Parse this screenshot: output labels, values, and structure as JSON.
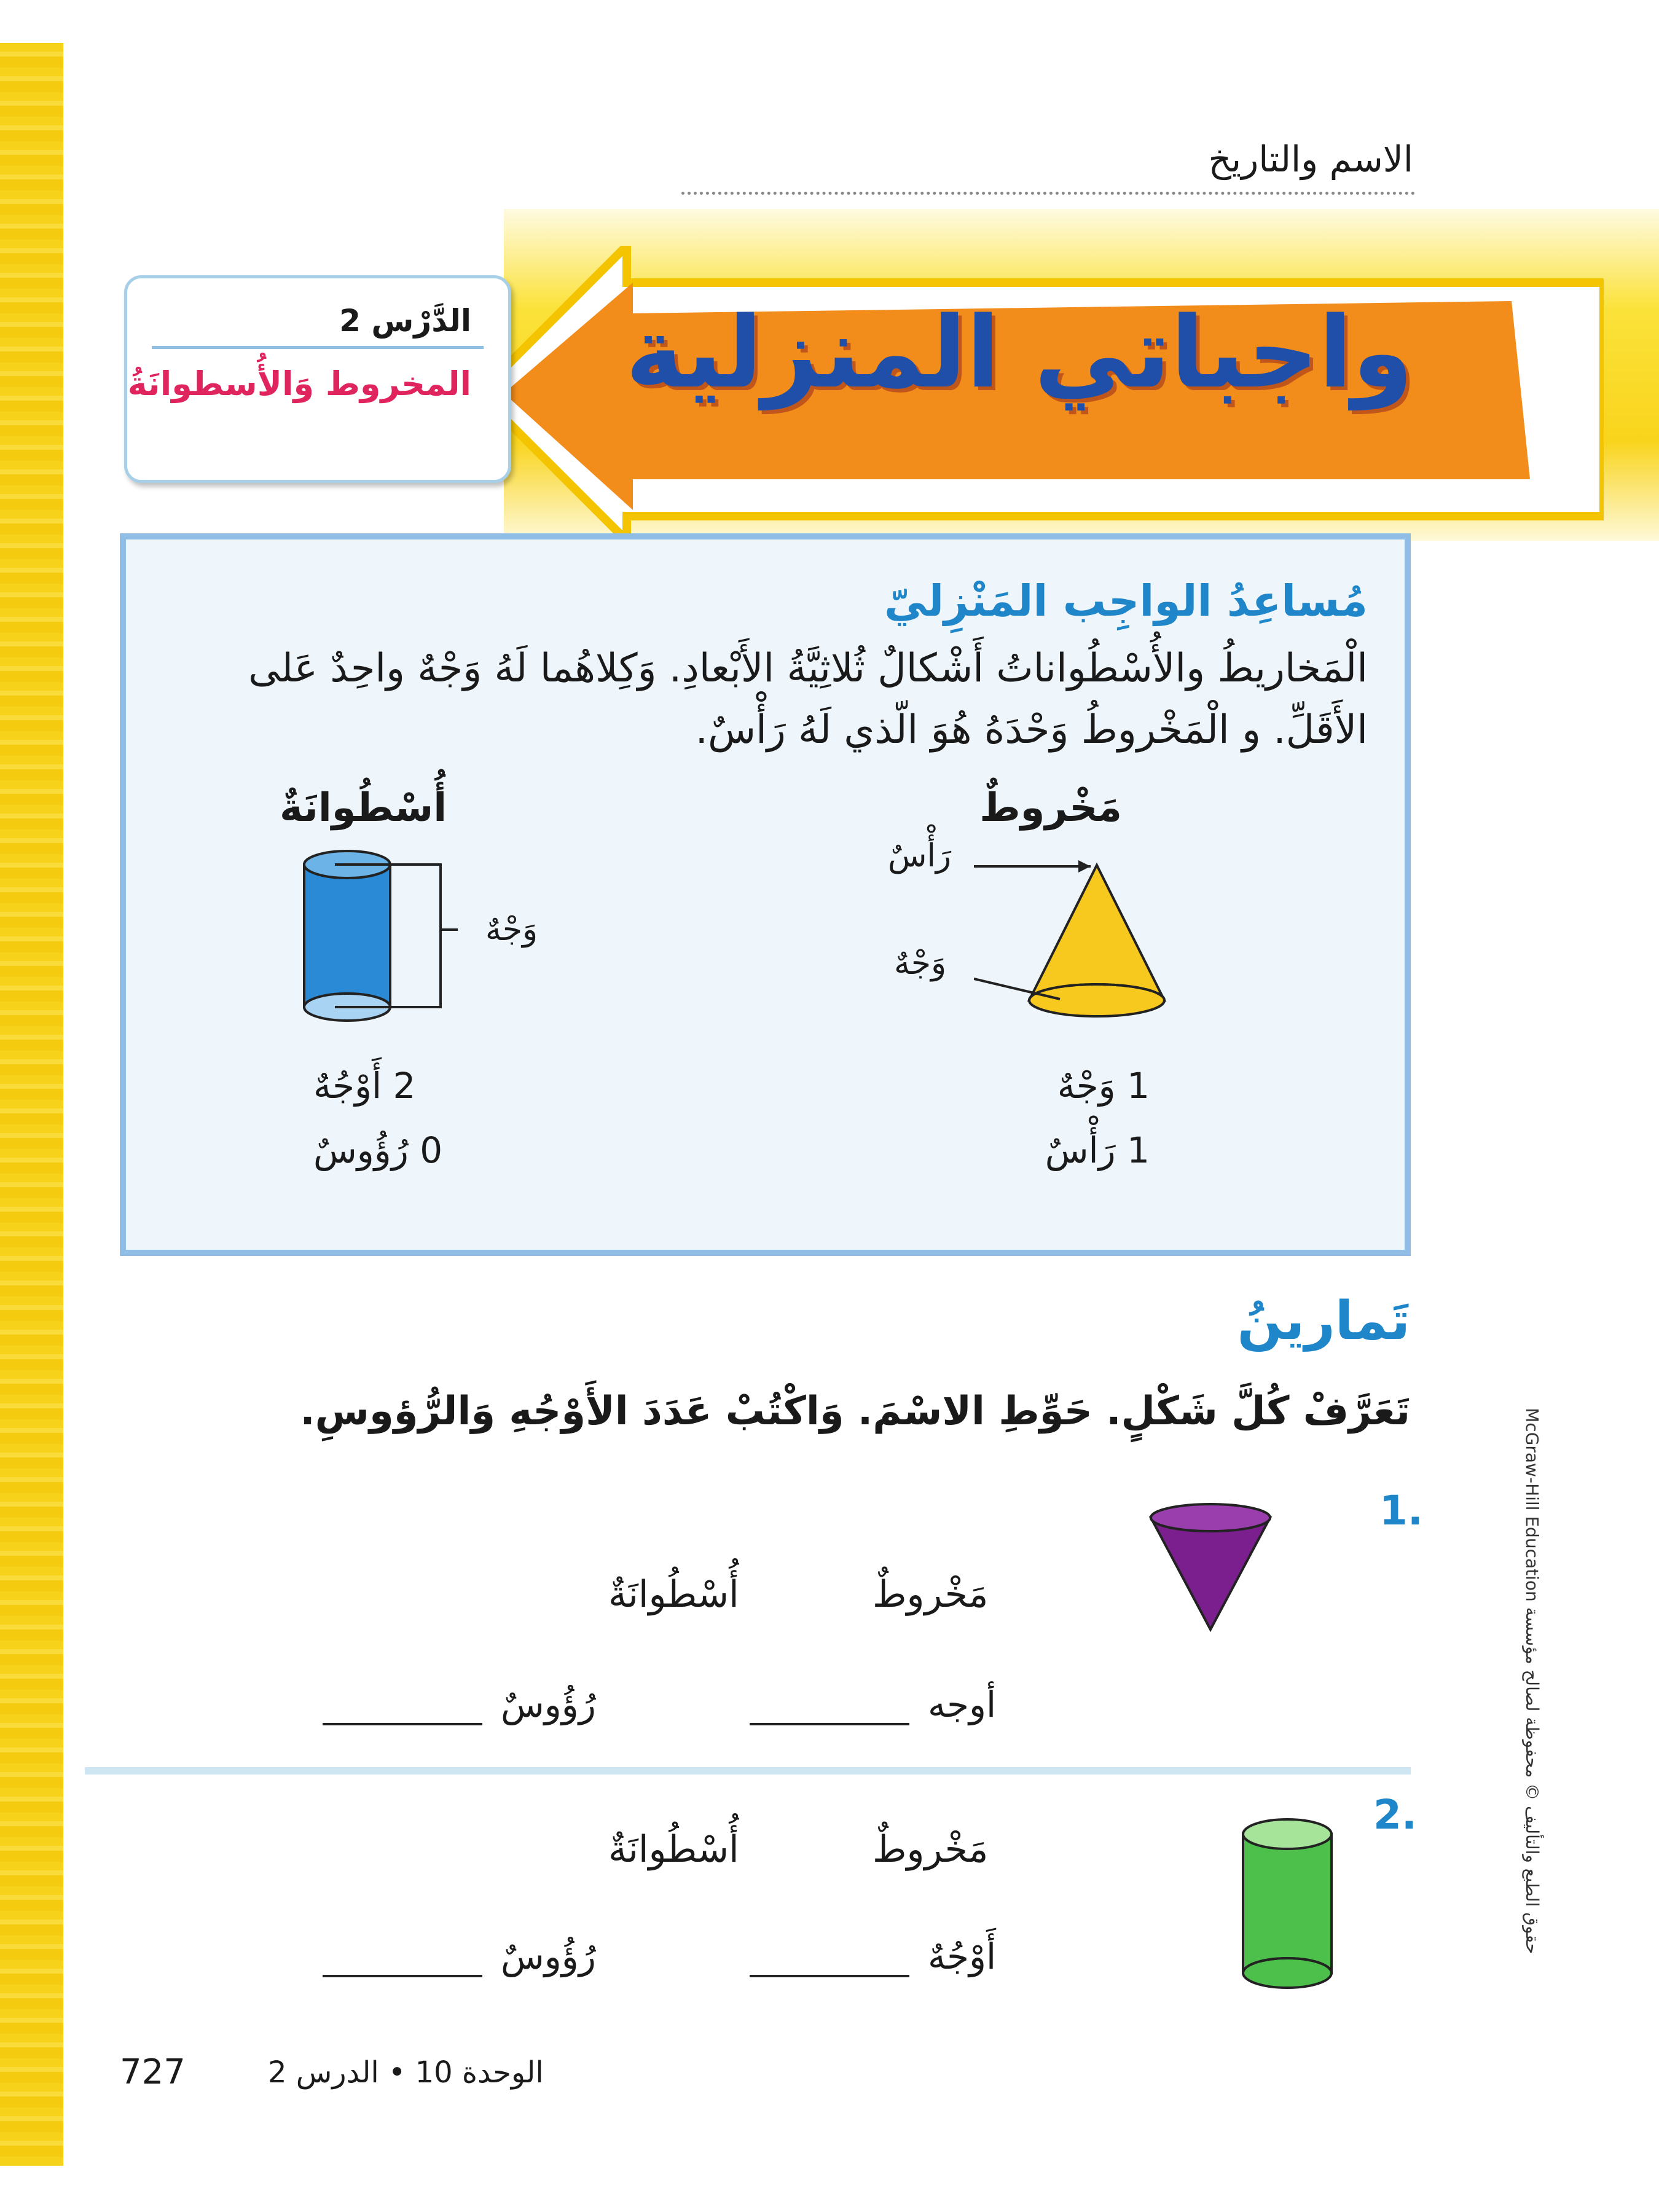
{
  "header": {
    "name_date_label": "الاسم والتاريخ"
  },
  "banner": {
    "title": "واجباتي المنزلية"
  },
  "lesson": {
    "number": "الدَّرْس 2",
    "name": "المخروط وَالأُسطوانَةُ"
  },
  "helper": {
    "title": "مُساعِدُ الواجِب المَنْزِليّ",
    "text": "الْمَخاريطُ والأُسْطُواناتُ أَشْكالٌ ثُلاثِيَّةُ الأَبْعادِ. وَكِلاهُما لَهُ وَجْهٌ واحِدٌ عَلى الأَقَلِّ. و الْمَخْروطُ وَحْدَهُ هُوَ الّذي لَهُ رَأْسٌ.",
    "cone": {
      "label": "مَخْروطٌ",
      "vertex_label": "رَأْسٌ",
      "face_label": "وَجْهٌ",
      "faces": "1 وَجْهٌ",
      "vertices": "1 رَأْسٌ",
      "color": "#f7c81e"
    },
    "cylinder": {
      "label": "أُسْطُوانَةٌ",
      "face_label": "وَجْهٌ",
      "faces": "2 أَوْجُهٌ",
      "vertices": "0 رُؤُوسٌ",
      "color": "#2a8ad6"
    }
  },
  "exercises": {
    "title": "تَمارينُ",
    "instruction": "تَعَرَّفْ كُلَّ شَكْلٍ. حَوِّطِ الاسْمَ. وَاكْتُبْ عَدَدَ الأَوْجُهِ وَالرُّؤوسِ.",
    "items": [
      {
        "number": "1.",
        "shape": "cone",
        "color": "#7b1f8f",
        "options": [
          "مَخْروطٌ",
          "أُسْطُوانَةٌ"
        ],
        "faces_label": "أوجه",
        "vertices_label": "رُؤُوسٌ"
      },
      {
        "number": "2.",
        "shape": "cylinder",
        "color": "#4cc04a",
        "options": [
          "مَخْروطٌ",
          "أُسْطُوانَةٌ"
        ],
        "faces_label": "أَوْجُهٌ",
        "vertices_label": "رُؤُوسٌ"
      }
    ]
  },
  "footer": {
    "page": "727",
    "unit_lesson": "الوحدة 10 • الدرس 2"
  },
  "copyright": "حقوق الطبع والتأليف © محفوظة لصالح مؤسسة McGraw-Hill Education"
}
